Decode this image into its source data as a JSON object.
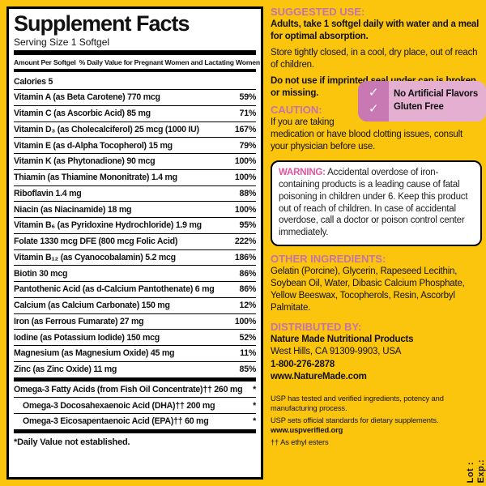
{
  "colors": {
    "background_yellow": "#fcc50d",
    "heading_pink": "#c473ae",
    "warning_pink": "#e0559e",
    "badge_light_pink": "#e5afd2",
    "badge_dark_pink": "#c878b2",
    "panel_white": "#ffffff",
    "text_black": "#111111"
  },
  "panel": {
    "title": "Supplement Facts",
    "serving": "Serving Size 1 Softgel",
    "header_left": "Amount Per Softgel",
    "header_right": "% Daily Value for Pregnant Women and Lactating Women",
    "rows": [
      {
        "name": "Calories 5",
        "dv": ""
      },
      {
        "name": "Vitamin A (as Beta Carotene) 770 mcg",
        "dv": "59%"
      },
      {
        "name": "Vitamin C (as Ascorbic Acid) 85 mg",
        "dv": "71%"
      },
      {
        "name": "Vitamin D₃ (as Cholecalciferol) 25 mcg (1000 IU)",
        "dv": "167%"
      },
      {
        "name": "Vitamin E (as d-Alpha Tocopherol) 15 mg",
        "dv": "79%"
      },
      {
        "name": "Vitamin K (as Phytonadione) 90 mcg",
        "dv": "100%"
      },
      {
        "name": "Thiamin (as Thiamine Mononitrate) 1.4 mg",
        "dv": "100%"
      },
      {
        "name": "Riboflavin 1.4 mg",
        "dv": "88%"
      },
      {
        "name": "Niacin (as Niacinamide) 18 mg",
        "dv": "100%"
      },
      {
        "name": "Vitamin B₆ (as Pyridoxine Hydrochloride) 1.9 mg",
        "dv": "95%"
      },
      {
        "name": "Folate 1330 mcg DFE (800 mcg Folic Acid)",
        "dv": "222%"
      },
      {
        "name": "Vitamin B₁₂ (as Cyanocobalamin) 5.2 mcg",
        "dv": "186%"
      },
      {
        "name": "Biotin 30 mcg",
        "dv": "86%"
      },
      {
        "name": "Pantothenic Acid (as d-Calcium Pantothenate) 6 mg",
        "dv": "86%"
      },
      {
        "name": "Calcium (as Calcium Carbonate) 150 mg",
        "dv": "12%"
      },
      {
        "name": "Iron (as Ferrous Fumarate) 27 mg",
        "dv": "100%"
      },
      {
        "name": "Iodine (as Potassium Iodide) 150 mcg",
        "dv": "52%"
      },
      {
        "name": "Magnesium (as Magnesium Oxide) 45 mg",
        "dv": "11%"
      },
      {
        "name": "Zinc (as Zinc Oxide) 11 mg",
        "dv": "85%"
      },
      {
        "name": "Omega-3 Fatty Acids (from Fish Oil Concentrate)†† 260 mg",
        "dv": "*"
      },
      {
        "name": "Omega-3 Docosahexaenoic Acid (DHA)†† 200 mg",
        "dv": "*"
      },
      {
        "name": "Omega-3 Eicosapentaenoic Acid (EPA)†† 60 mg",
        "dv": "*"
      }
    ],
    "footnote": "*Daily Value not established."
  },
  "right": {
    "suggested_heading": "SUGGESTED USE:",
    "suggested_text": "Adults, take 1 softgel daily with water and a meal for optimal absorption.",
    "store_text": "Store tightly closed, in a cool, dry place, out of reach of children.",
    "seal_text": "Do not use if imprinted seal under cap is broken or missing.",
    "caution_heading": "CAUTION:",
    "caution_line1": "If you are taking",
    "caution_rest": "medication or have blood clotting issues, consult your physician before use.",
    "badge": {
      "check_icon": "✓",
      "line1": "No Artificial Flavors",
      "line2": "Gluten Free"
    },
    "warning_heading": "WARNING:",
    "warning_text": " Accidental overdose of iron-containing products is a leading cause of fatal poisoning in children under 6. Keep this product out of reach of children. In case of accidental overdose, call a doctor or poison control center immediately.",
    "other_heading": "OTHER INGREDIENTS:",
    "other_text": "Gelatin (Porcine), Glycerin, Rapeseed Lecithin, Soybean Oil, Water, Dibasic Calcium Phosphate, Yellow Beeswax, Tocopherols, Resin, Ascorbyl Palmitate.",
    "dist_heading": "DISTRIBUTED BY:",
    "dist_name": "Nature Made Nutritional Products",
    "dist_addr": "West Hills, CA 91309-9903, USA",
    "dist_phone": "1-800-276-2878",
    "dist_web": "www.NatureMade.com",
    "usp_line1": "USP has tested and verified ingredients, potency and manufacturing process.",
    "usp_line2": "USP sets official standards for dietary supplements.",
    "usp_web": "www.uspverified.org",
    "esters_note": "†† As ethyl esters",
    "lot_label": "Lot :",
    "exp_label": "Exp.:"
  }
}
